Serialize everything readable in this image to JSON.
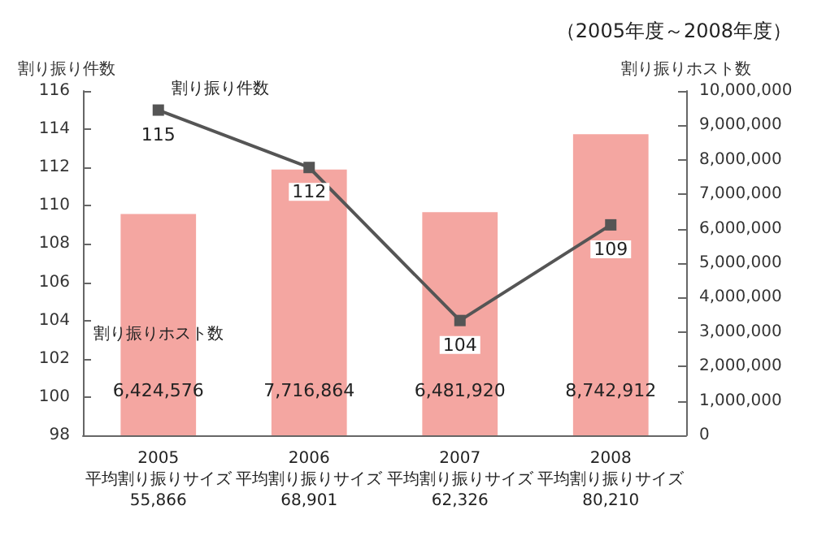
{
  "chart_data": {
    "type": "bar",
    "title": "（2005年度～2008年度）",
    "ylabel": "割り振り件数",
    "y2label": "割り振りホスト数",
    "categories": [
      "2005\n平均割り振りサイズ\n55,866",
      "2006\n平均割り振りサイズ\n68,901",
      "2007\n平均割り振りサイズ\n62,326",
      "2008\n平均割り振りサイズ\n80,210"
    ],
    "series": [
      {
        "name": "割り振りホスト数",
        "axis": "y2",
        "color": "#f4a6a1",
        "values": [
          6424576,
          7716864,
          6481920,
          8742912
        ],
        "value_labels": [
          "6,424,576",
          "7,716,864",
          "6,481,920",
          "8,742,912"
        ]
      },
      {
        "name": "割り振り件数",
        "type": "line",
        "color": "#555555",
        "values": [
          115,
          112,
          104,
          109
        ]
      }
    ],
    "ylim": [
      98,
      116
    ],
    "yticks": [
      98,
      100,
      102,
      104,
      106,
      108,
      110,
      112,
      114,
      116
    ],
    "y2lim": [
      0,
      10000000
    ],
    "y2ticks": [
      0,
      {
        "value": 1000000,
        "label": "1,000,000"
      },
      {
        "value": 2000000,
        "label": "2,000,000"
      },
      {
        "value": 3000000,
        "label": "3,000,000"
      },
      {
        "value": 4000000,
        "label": "4,000,000"
      },
      {
        "value": 5000000,
        "label": "5,000,000"
      },
      {
        "value": 6000000,
        "label": "6,000,000"
      },
      {
        "value": 7000000,
        "label": "7,000,000"
      },
      {
        "value": 8000000,
        "label": "8,000,000"
      },
      {
        "value": 9000000,
        "label": "9,000,000"
      },
      {
        "value": 10000000,
        "label": "10,000,000"
      }
    ],
    "data_labels": true,
    "marker": "square",
    "grid": false,
    "legend": false
  }
}
